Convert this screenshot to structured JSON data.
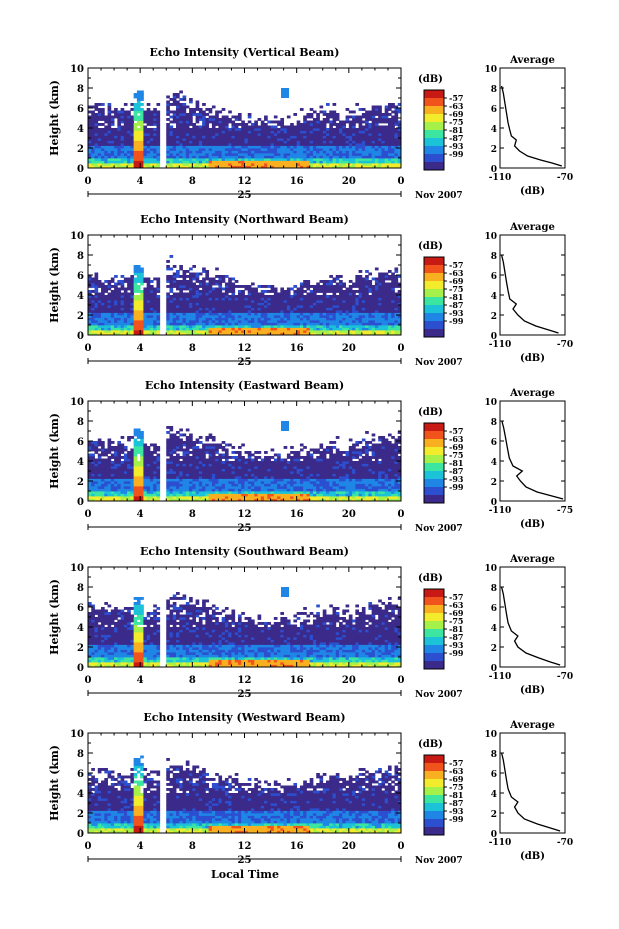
{
  "chart_data": {
    "type": "heatmap",
    "xlabel_bottom": "Local Time",
    "date_left": "25",
    "date_right": "Nov 2007",
    "x_ticks": [
      "0",
      "4",
      "8",
      "12",
      "16",
      "20",
      "0"
    ],
    "y_ticks": [
      "0",
      "2",
      "4",
      "6",
      "8",
      "10"
    ],
    "ylabel": "Height (km)",
    "ylim": [
      0,
      10
    ],
    "xlim_hours": [
      0,
      24
    ],
    "colorbar": {
      "unit": "(dB)",
      "labels": [
        "-57",
        "-63",
        "-69",
        "-75",
        "-81",
        "-87",
        "-93",
        "-99"
      ],
      "colors": [
        "#3b2a8a",
        "#2c4fd0",
        "#1f86e6",
        "#1cc3d8",
        "#3de6a0",
        "#a6f04a",
        "#f2ec2c",
        "#f9b020",
        "#f0541c",
        "#c81a14"
      ]
    },
    "data_gap_hours": [
      5.4,
      6.0
    ],
    "panels": [
      {
        "title": "Echo Intensity (Vertical Beam)",
        "avg_title": "Average",
        "avg_xlabel": "(dB)",
        "avg_ticks": [
          "-110",
          "-70"
        ],
        "avg_profile": [
          {
            "h": 0.2,
            "db": -72
          },
          {
            "h": 0.5,
            "db": -78
          },
          {
            "h": 0.8,
            "db": -85
          },
          {
            "h": 1.2,
            "db": -93
          },
          {
            "h": 1.7,
            "db": -98
          },
          {
            "h": 2.2,
            "db": -101
          },
          {
            "h": 2.8,
            "db": -100
          },
          {
            "h": 3.2,
            "db": -103
          },
          {
            "h": 3.8,
            "db": -104
          },
          {
            "h": 4.5,
            "db": -105
          },
          {
            "h": 5.5,
            "db": -106
          },
          {
            "h": 6.5,
            "db": -107
          },
          {
            "h": 7.5,
            "db": -108
          },
          {
            "h": 8.2,
            "db": -109
          }
        ]
      },
      {
        "title": "Echo Intensity (Northward Beam)",
        "avg_title": "Average",
        "avg_xlabel": "(dB)",
        "avg_ticks": [
          "-110",
          "-70"
        ],
        "avg_profile": [
          {
            "h": 0.2,
            "db": -74
          },
          {
            "h": 0.5,
            "db": -80
          },
          {
            "h": 0.9,
            "db": -88
          },
          {
            "h": 1.4,
            "db": -95
          },
          {
            "h": 2.0,
            "db": -99
          },
          {
            "h": 2.6,
            "db": -102
          },
          {
            "h": 3.1,
            "db": -100
          },
          {
            "h": 3.6,
            "db": -104
          },
          {
            "h": 4.4,
            "db": -105
          },
          {
            "h": 5.3,
            "db": -106
          },
          {
            "h": 6.3,
            "db": -107
          },
          {
            "h": 7.3,
            "db": -108
          },
          {
            "h": 8.0,
            "db": -109
          }
        ]
      },
      {
        "title": "Echo Intensity (Eastward Beam)",
        "avg_title": "Average",
        "avg_xlabel": "(dB)",
        "avg_ticks": [
          "-110",
          "-75"
        ],
        "avg_profile": [
          {
            "h": 0.2,
            "db": -76
          },
          {
            "h": 0.5,
            "db": -82
          },
          {
            "h": 0.9,
            "db": -90
          },
          {
            "h": 1.4,
            "db": -96
          },
          {
            "h": 2.0,
            "db": -99
          },
          {
            "h": 2.5,
            "db": -101
          },
          {
            "h": 3.0,
            "db": -98
          },
          {
            "h": 3.5,
            "db": -103
          },
          {
            "h": 4.3,
            "db": -105
          },
          {
            "h": 5.3,
            "db": -106
          },
          {
            "h": 6.3,
            "db": -107
          },
          {
            "h": 7.3,
            "db": -108
          },
          {
            "h": 8.0,
            "db": -109
          }
        ]
      },
      {
        "title": "Echo Intensity (Southward Beam)",
        "avg_title": "Average",
        "avg_xlabel": "(dB)",
        "avg_ticks": [
          "-110",
          "-70"
        ],
        "avg_profile": [
          {
            "h": 0.2,
            "db": -73
          },
          {
            "h": 0.5,
            "db": -79
          },
          {
            "h": 0.9,
            "db": -86
          },
          {
            "h": 1.4,
            "db": -94
          },
          {
            "h": 2.0,
            "db": -99
          },
          {
            "h": 2.6,
            "db": -101
          },
          {
            "h": 3.1,
            "db": -99
          },
          {
            "h": 3.6,
            "db": -103
          },
          {
            "h": 4.4,
            "db": -105
          },
          {
            "h": 5.3,
            "db": -106
          },
          {
            "h": 6.3,
            "db": -107
          },
          {
            "h": 7.3,
            "db": -108
          },
          {
            "h": 8.0,
            "db": -109
          }
        ]
      },
      {
        "title": "Echo Intensity (Westward Beam)",
        "avg_title": "Average",
        "avg_xlabel": "(dB)",
        "avg_ticks": [
          "-110",
          "-70"
        ],
        "avg_profile": [
          {
            "h": 0.2,
            "db": -73
          },
          {
            "h": 0.5,
            "db": -79
          },
          {
            "h": 0.9,
            "db": -87
          },
          {
            "h": 1.4,
            "db": -95
          },
          {
            "h": 2.0,
            "db": -99
          },
          {
            "h": 2.6,
            "db": -101
          },
          {
            "h": 3.1,
            "db": -99
          },
          {
            "h": 3.6,
            "db": -103
          },
          {
            "h": 4.4,
            "db": -105
          },
          {
            "h": 5.3,
            "db": -106
          },
          {
            "h": 6.3,
            "db": -107
          },
          {
            "h": 7.3,
            "db": -108
          },
          {
            "h": 8.0,
            "db": -109
          }
        ]
      }
    ]
  }
}
